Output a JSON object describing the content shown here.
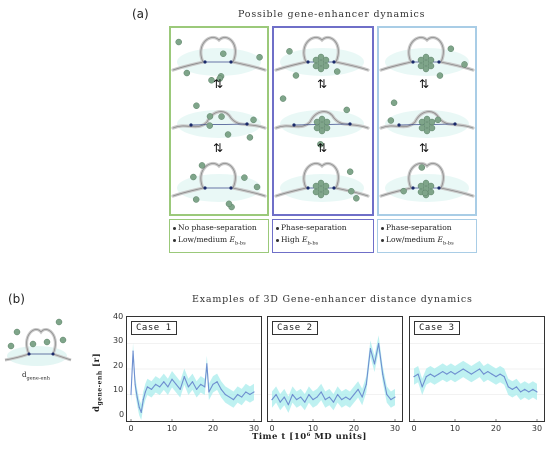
{
  "panel_a": {
    "label": "(a)",
    "title": "Possible gene-enhancer dynamics",
    "arrow_glyph": "⇅",
    "columns": [
      {
        "border_color": "#9bc97a",
        "legend": [
          "No phase-separation",
          "Low/medium E_b-bs"
        ],
        "legend_lines": [
          {
            "text": "No phase-separation",
            "sub": ""
          },
          {
            "text": "Low/medium ",
            "ital": "E",
            "sub": "b-bs"
          }
        ]
      },
      {
        "border_color": "#6f6fc8",
        "legend": [
          "Phase-separation",
          "High E_b-bs"
        ],
        "legend_lines": [
          {
            "text": "Phase-separation",
            "sub": ""
          },
          {
            "text": "High ",
            "ital": "E",
            "sub": "b-bs"
          }
        ]
      },
      {
        "border_color": "#a9cde6",
        "legend": [
          "Phase-separation",
          "Low/medium E_b-bs"
        ],
        "legend_lines": [
          {
            "text": "Phase-separation",
            "sub": ""
          },
          {
            "text": "Low/medium ",
            "ital": "E",
            "sub": "b-bs"
          }
        ]
      }
    ]
  },
  "panel_b": {
    "label": "(b)",
    "title": "Examples of 3D Gene-enhancer distance dynamics",
    "schematic_label": "d",
    "schematic_label_sub": "gene-enh",
    "ylabel_main": "d",
    "ylabel_sub": "gene-enh",
    "ylabel_unit": " [r]",
    "xlabel": "Time t [10⁶ MD units]",
    "colors": {
      "line": "#6f8fd0",
      "band": "#a8ecec"
    }
  },
  "chart_data": [
    {
      "type": "line",
      "title": "Case 1",
      "xlabel": "Time t [10⁶ MD units]",
      "ylabel": "d_gene-enh [r]",
      "xlim": [
        0,
        30
      ],
      "ylim": [
        0,
        40
      ],
      "xticks": [
        0,
        10,
        20,
        30
      ],
      "yticks": [
        0,
        10,
        20,
        30,
        40
      ],
      "x": [
        0,
        0.5,
        1,
        1.5,
        2,
        2.5,
        3,
        3.5,
        4,
        5,
        6,
        7,
        8,
        9,
        10,
        11,
        12,
        13,
        14,
        15,
        16,
        17,
        18,
        18.5,
        19,
        20,
        21,
        22,
        23,
        24,
        25,
        26,
        27,
        28,
        29,
        30
      ],
      "y": [
        10,
        27,
        14,
        9,
        5,
        3,
        8,
        11,
        13,
        12,
        14,
        13,
        15,
        13,
        16,
        14,
        12,
        17,
        13,
        15,
        12,
        14,
        13,
        22,
        11,
        14,
        15,
        12,
        10,
        9,
        8,
        10,
        9,
        11,
        10,
        11
      ]
    },
    {
      "type": "line",
      "title": "Case 2",
      "xlim": [
        0,
        30
      ],
      "ylim": [
        0,
        40
      ],
      "xticks": [
        0,
        10,
        20,
        30
      ],
      "x": [
        0,
        1,
        2,
        3,
        4,
        5,
        6,
        7,
        8,
        9,
        10,
        11,
        12,
        13,
        14,
        15,
        16,
        17,
        18,
        19,
        20,
        21,
        22,
        23,
        24,
        25,
        26,
        27,
        28,
        29,
        30
      ],
      "y": [
        8,
        10,
        7,
        9,
        6,
        10,
        8,
        9,
        7,
        10,
        8,
        9,
        11,
        8,
        9,
        7,
        10,
        8,
        9,
        8,
        10,
        12,
        9,
        14,
        28,
        22,
        30,
        18,
        10,
        8,
        9
      ]
    },
    {
      "type": "line",
      "title": "Case 3",
      "xlim": [
        0,
        30
      ],
      "ylim": [
        0,
        40
      ],
      "xticks": [
        0,
        10,
        20,
        30
      ],
      "x": [
        0,
        1,
        2,
        3,
        4,
        5,
        6,
        7,
        8,
        9,
        10,
        11,
        12,
        13,
        14,
        15,
        16,
        17,
        18,
        19,
        20,
        21,
        22,
        23,
        24,
        25,
        26,
        27,
        28,
        29,
        30
      ],
      "y": [
        17,
        18,
        13,
        17,
        18,
        17,
        18,
        19,
        18,
        19,
        18,
        19,
        20,
        19,
        18,
        19,
        20,
        18,
        19,
        18,
        17,
        18,
        17,
        13,
        12,
        13,
        11,
        12,
        11,
        12,
        11
      ]
    }
  ]
}
